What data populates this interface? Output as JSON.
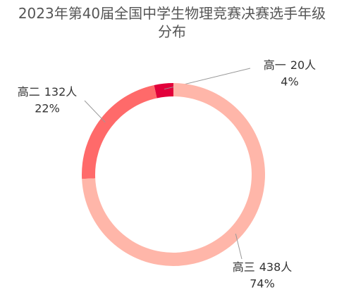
{
  "chart_data": {
    "type": "donut",
    "title": "2023年第40届全国中学生物理竞赛决赛选手年级分布",
    "categories": [
      "高一",
      "高二",
      "高三"
    ],
    "values": [
      20,
      132,
      438
    ],
    "value_labels": [
      "20人",
      "132人",
      "438人"
    ],
    "percent_labels": [
      "4%",
      "22%",
      "74%"
    ],
    "colors": [
      "#e2003a",
      "#ff6a6a",
      "#ffb6a9"
    ]
  }
}
